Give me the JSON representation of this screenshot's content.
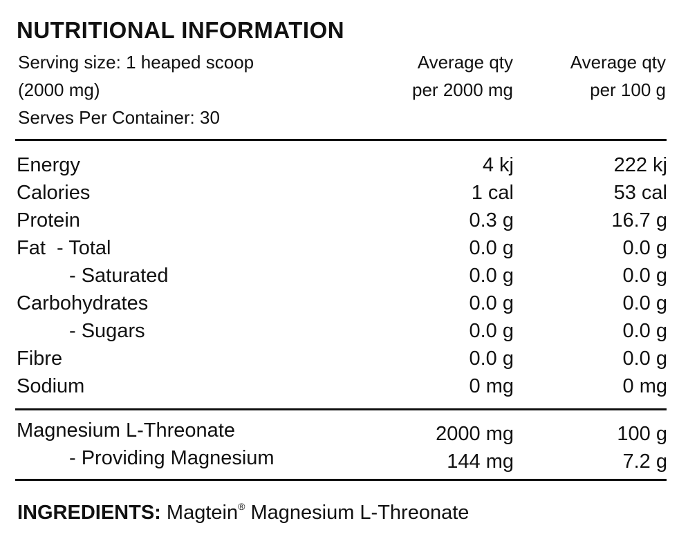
{
  "title": "NUTRITIONAL INFORMATION",
  "serving": {
    "line1": "Serving size: 1 heaped scoop",
    "line2": "(2000 mg)",
    "line3": "Serves Per Container: 30"
  },
  "columns": {
    "col1_line1": "Average qty",
    "col1_line2": "per 2000 mg",
    "col2_line1": "Average qty",
    "col2_line2": "per 100 g"
  },
  "nutrients": [
    {
      "label": "Energy",
      "per_serving": "4 kj",
      "per_100g": "222 kj"
    },
    {
      "label": "Calories",
      "per_serving": "1 cal",
      "per_100g": "53 cal"
    },
    {
      "label": "Protein",
      "per_serving": "0.3 g",
      "per_100g": "16.7 g"
    },
    {
      "label": "Fat  - Total",
      "per_serving": "0.0 g",
      "per_100g": "0.0 g"
    },
    {
      "label": "- Saturated",
      "per_serving": "0.0 g",
      "per_100g": "0.0 g"
    },
    {
      "label": "Carbohydrates",
      "per_serving": "0.0 g",
      "per_100g": "0.0 g"
    },
    {
      "label": "- Sugars",
      "per_serving": "0.0 g",
      "per_100g": "0.0 g"
    },
    {
      "label": "Fibre",
      "per_serving": "0.0 g",
      "per_100g": "0.0 g"
    },
    {
      "label": "Sodium",
      "per_serving": "0 mg",
      "per_100g": "0 mg"
    }
  ],
  "actives": [
    {
      "label": "Magnesium L-Threonate",
      "per_serving": "2000 mg",
      "per_100g": "100 g"
    },
    {
      "label": "- Providing Magnesium",
      "per_serving": "144 mg",
      "per_100g": "7.2 g"
    }
  ],
  "ingredients": {
    "heading": "INGREDIENTS:",
    "brand": "Magtein",
    "trademark": "®",
    "text": "Magnesium L-Threonate"
  }
}
